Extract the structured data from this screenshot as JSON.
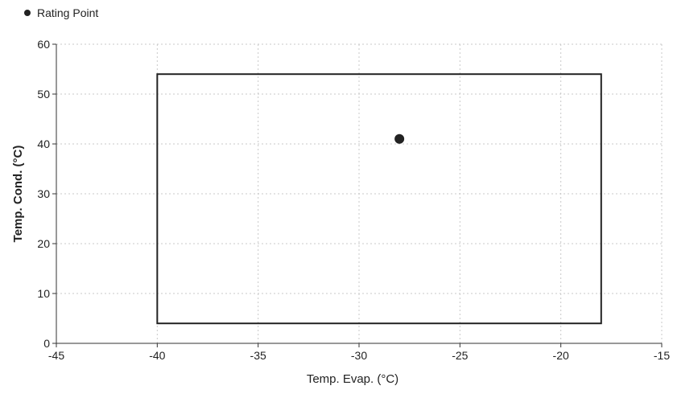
{
  "chart_data": {
    "type": "scatter",
    "xlabel": "Temp. Evap. (°C)",
    "ylabel": "Temp. Cond. (°C)",
    "xlim": [
      -45,
      -15
    ],
    "ylim": [
      0,
      60
    ],
    "x_ticks": [
      -45,
      -40,
      -35,
      -30,
      -25,
      -20,
      -15
    ],
    "y_ticks": [
      0,
      10,
      20,
      30,
      40,
      50,
      60
    ],
    "grid": true,
    "legend_position": "top-left",
    "series": [
      {
        "name": "Rating Point",
        "color": "#222222",
        "points": [
          {
            "x": -28,
            "y": 41
          }
        ]
      }
    ],
    "envelope": {
      "x_min": -40,
      "x_max": -18,
      "y_min": 4,
      "y_max": 54
    }
  },
  "legend": {
    "label": "Rating Point"
  }
}
